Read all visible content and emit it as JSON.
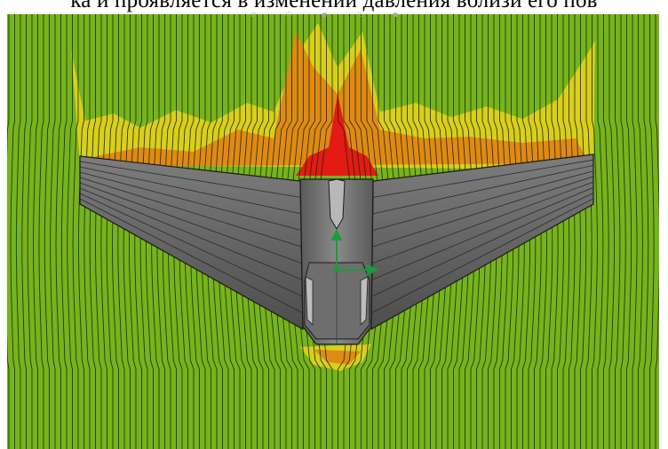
{
  "caption": {
    "text": "ка и проявляется в изменении давления вблизи его пов"
  },
  "toolbar": {
    "icons": [
      "view-icon",
      "rotate-icon",
      "zoom-icon",
      "axis-icon",
      "options-icon"
    ]
  },
  "colors": {
    "background_flow": "#76b41e",
    "streamline": "#1e2a0c",
    "pressure_yellow": "#d9cf1c",
    "pressure_orange": "#e08a14",
    "pressure_red": "#e41a14",
    "model_gray": "#6b6b6b",
    "axis_green": "#1f9a3a"
  }
}
